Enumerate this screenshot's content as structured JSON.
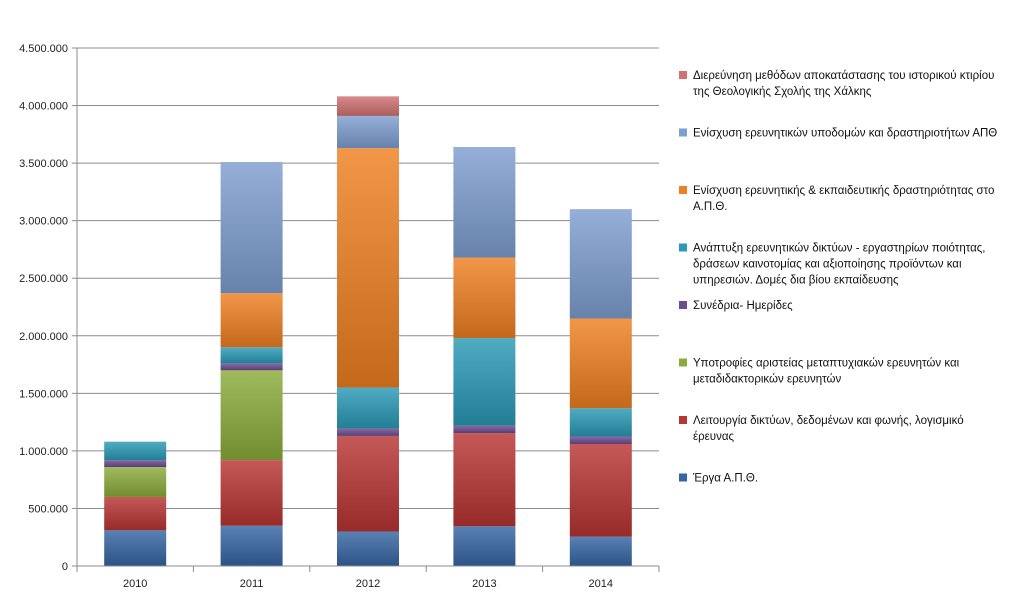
{
  "chart_data": {
    "type": "bar",
    "stacked": true,
    "categories": [
      "2010",
      "2011",
      "2012",
      "2013",
      "2014"
    ],
    "ylim": [
      0,
      4500000
    ],
    "yticks": [
      0,
      500000,
      1000000,
      1500000,
      2000000,
      2500000,
      3000000,
      3500000,
      4000000,
      4500000
    ],
    "ytick_labels": [
      "0",
      "500.000",
      "1.000.000",
      "1.500.000",
      "2.000.000",
      "2.500.000",
      "3.000.000",
      "3.500.000",
      "4.000.000",
      "4.500.000"
    ],
    "grid": true,
    "legend_position": "right",
    "series": [
      {
        "name": "Έργα Α.Π.Θ.",
        "color": "#3465a4",
        "values": [
          310000,
          350000,
          300000,
          345000,
          255000
        ]
      },
      {
        "name": "Λειτουργία δικτύων, δεδομένων και φωνής, λογισμικό έρευνας",
        "color": "#b83532",
        "values": [
          290000,
          570000,
          830000,
          810000,
          805000
        ]
      },
      {
        "name": "Υποτροφίες αριστείας μεταπτυχιακών ερευνητών και μεταδιδακτορικών ερευνητών",
        "color": "#8aac3a",
        "values": [
          260000,
          780000,
          0,
          0,
          0
        ]
      },
      {
        "name": "Συνέδρια- Ημερίδες",
        "color": "#6b4a90",
        "values": [
          60000,
          60000,
          65000,
          65000,
          65000
        ]
      },
      {
        "name": "Ανάπτυξη ερευνητικών δικτύων - εργαστηρίων ποιότητας, δράσεων καινοτομίας και αξιοποίησης προϊόντων και υπηρεσιών. Δομές δια βίου εκπαίδευσης",
        "color": "#2a9ab6",
        "values": [
          160000,
          140000,
          355000,
          760000,
          245000
        ]
      },
      {
        "name": "Ενίσχυση ερευνητικής & εκπαιδευτικής δραστηριότητας στο Α.Π.Θ.",
        "color": "#ef7f22",
        "values": [
          0,
          470000,
          2080000,
          700000,
          780000
        ]
      },
      {
        "name": "Ενίσχυση ερευνητικών υποδομών και δραστηριοτήτων ΑΠΘ",
        "color": "#7e9ed0",
        "values": [
          0,
          1140000,
          280000,
          960000,
          950000
        ]
      },
      {
        "name": "Διερεύνηση μεθόδων αποκατάστασης του ιστορικού κτιρίου της Θεολογικής Σχολής της Χάλκης",
        "color": "#d07070",
        "values": [
          0,
          0,
          170000,
          0,
          0
        ]
      }
    ]
  }
}
